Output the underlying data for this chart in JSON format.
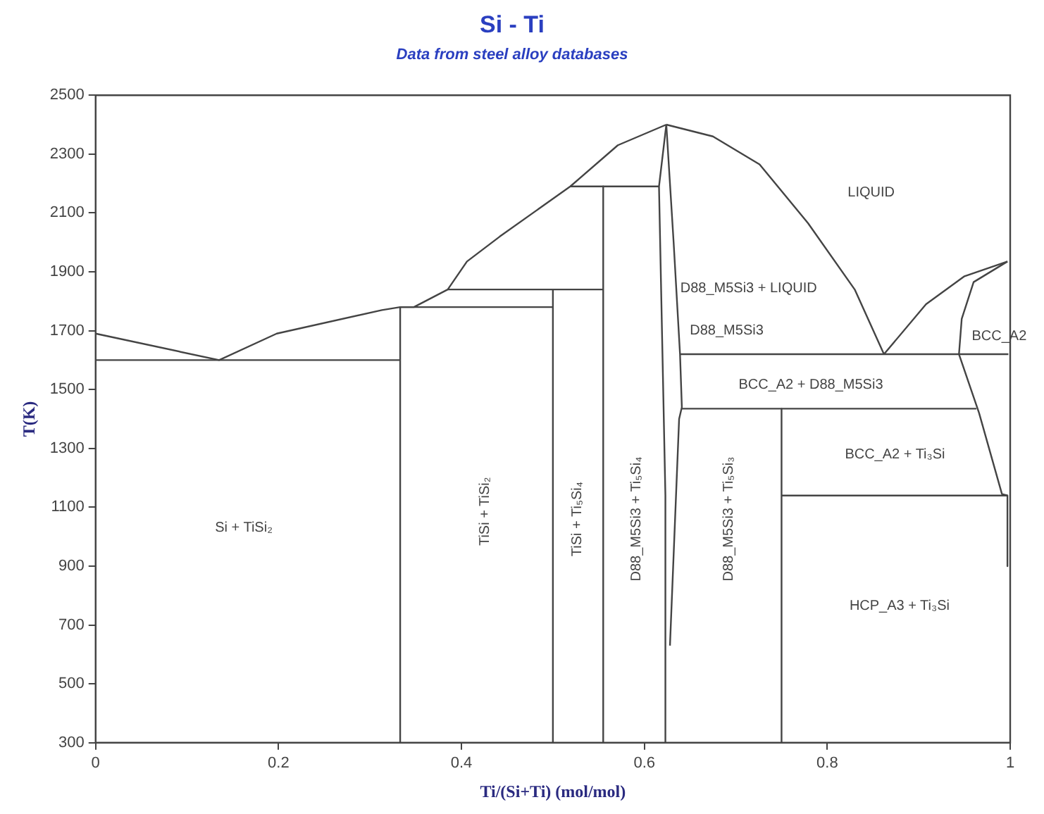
{
  "chart_data": {
    "type": "line",
    "title": "Si - Ti",
    "subtitle": "Data from steel alloy databases",
    "xlabel": "Ti/(Si+Ti) (mol/mol)",
    "ylabel": "T(K)",
    "xlim": [
      0,
      1
    ],
    "xticks": [
      0,
      0.2,
      0.4,
      0.6,
      0.8,
      1
    ],
    "ylim": [
      300,
      2500
    ],
    "yticks": [
      300,
      500,
      700,
      900,
      1100,
      1300,
      1500,
      1700,
      1900,
      2100,
      2300,
      2500
    ],
    "grid": false,
    "legend": false,
    "marker": "none",
    "line_style": "solid",
    "series": [
      {
        "color": "#444444",
        "x": [
          0,
          0.135,
          0.198,
          0.313,
          0.333,
          0.348,
          0.385,
          0.406,
          0.442,
          0.519,
          0.571,
          0.624
        ],
        "values": [
          1690,
          1600,
          1690,
          1770,
          1780,
          1780,
          1840,
          1935,
          2020,
          2190,
          2330,
          2400
        ]
      },
      {
        "color": "#444444",
        "x": [
          0.624,
          0.675,
          0.726,
          0.779,
          0.83,
          0.862
        ],
        "values": [
          2400,
          2360,
          2265,
          2065,
          1840,
          1620
        ]
      },
      {
        "color": "#444444",
        "x": [
          0.862,
          0.908,
          0.95,
          0.997
        ],
        "values": [
          1620,
          1790,
          1885,
          1935
        ]
      },
      {
        "color": "#444444",
        "x": [
          0.997,
          0.96,
          0.947,
          0.944,
          0.955,
          0.966,
          0.991,
          0.997
        ],
        "values": [
          1935,
          1865,
          1740,
          1620,
          1520,
          1420,
          1145,
          1140
        ]
      },
      {
        "color": "#444444",
        "x": [
          0.997,
          0.997
        ],
        "values": [
          1140,
          900
        ]
      },
      {
        "color": "#444444",
        "x": [
          0,
          0.333
        ],
        "values": [
          1600,
          1600
        ]
      },
      {
        "color": "#444444",
        "x": [
          0.333,
          0.333
        ],
        "values": [
          1780,
          300
        ]
      },
      {
        "color": "#444444",
        "x": [
          0.333,
          0.5
        ],
        "values": [
          1780,
          1780
        ]
      },
      {
        "color": "#444444",
        "x": [
          0.385,
          0.555
        ],
        "values": [
          1840,
          1840
        ]
      },
      {
        "color": "#444444",
        "x": [
          0.5,
          0.5
        ],
        "values": [
          1840,
          300
        ]
      },
      {
        "color": "#444444",
        "x": [
          0.519,
          0.616
        ],
        "values": [
          2190,
          2190
        ]
      },
      {
        "color": "#444444",
        "x": [
          0.555,
          0.555
        ],
        "values": [
          2190,
          300
        ]
      },
      {
        "color": "#444444",
        "x": [
          0.624,
          0.616,
          0.623,
          0.623
        ],
        "values": [
          2400,
          2190,
          1140,
          300
        ]
      },
      {
        "color": "#444444",
        "x": [
          0.624,
          0.632,
          0.639,
          0.641,
          0.638,
          0.628
        ],
        "values": [
          2400,
          2000,
          1620,
          1440,
          1400,
          630
        ]
      },
      {
        "color": "#444444",
        "x": [
          0.639,
          0.998
        ],
        "values": [
          1620,
          1620
        ]
      },
      {
        "color": "#444444",
        "x": [
          0.641,
          0.963
        ],
        "values": [
          1435,
          1435
        ]
      },
      {
        "color": "#444444",
        "x": [
          0.75,
          0.75
        ],
        "values": [
          1435,
          300
        ]
      },
      {
        "color": "#444444",
        "x": [
          0.75,
          0.997
        ],
        "values": [
          1140,
          1140
        ]
      }
    ],
    "annotations": [
      "Si + TiSi₂",
      "TiSi + TiSi₂",
      "TiSi + Ti₅Si₄",
      "D88_M5Si3 + Ti₅Si₄",
      "D88_M5Si3 + Ti₅Si₃",
      "LIQUID",
      "D88_M5Si3 + LIQUID",
      "D88_M5Si3",
      "BCC_A2 + D88_M5Si3",
      "BCC_A2",
      "BCC_A2 + Ti₃Si",
      "HCP_A3 + Ti₃Si"
    ]
  }
}
